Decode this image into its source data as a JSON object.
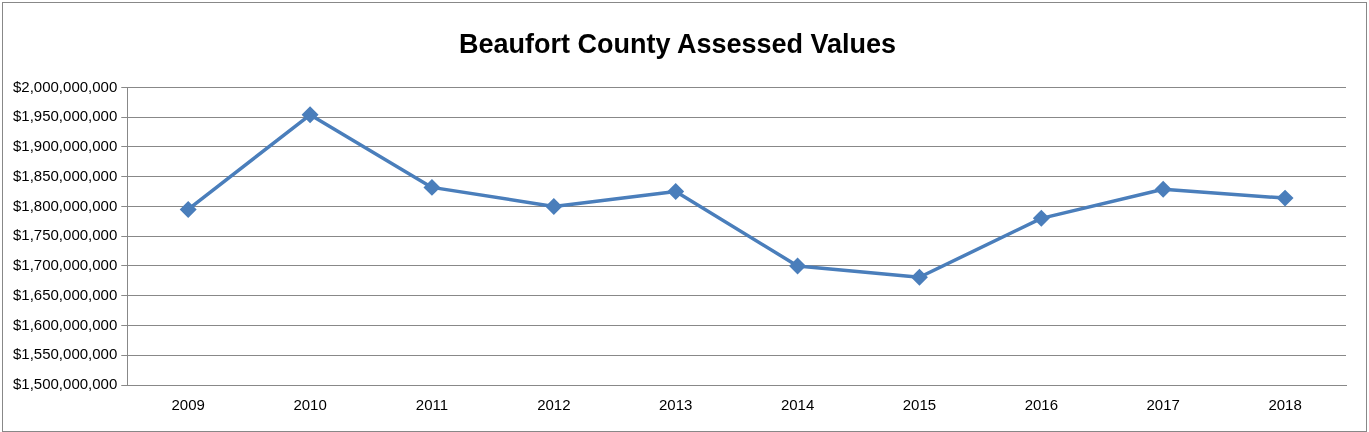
{
  "chart_data": {
    "type": "line",
    "title": "Beaufort County Assessed Values",
    "categories": [
      "2009",
      "2010",
      "2011",
      "2012",
      "2013",
      "2014",
      "2015",
      "2016",
      "2017",
      "2018"
    ],
    "series": [
      {
        "color": "#4a7ebb",
        "values": [
          1795000000,
          1954000000,
          1832000000,
          1800000000,
          1825000000,
          1700000000,
          1681000000,
          1780000000,
          1829000000,
          1814000000
        ]
      }
    ],
    "ylim": [
      1500000000,
      2000000000
    ],
    "yticks": [
      {
        "value": 1500000000,
        "label": "$1,500,000,000"
      },
      {
        "value": 1550000000,
        "label": "$1,550,000,000"
      },
      {
        "value": 1600000000,
        "label": "$1,600,000,000"
      },
      {
        "value": 1650000000,
        "label": "$1,650,000,000"
      },
      {
        "value": 1700000000,
        "label": "$1,700,000,000"
      },
      {
        "value": 1750000000,
        "label": "$1,750,000,000"
      },
      {
        "value": 1800000000,
        "label": "$1,800,000,000"
      },
      {
        "value": 1850000000,
        "label": "$1,850,000,000"
      },
      {
        "value": 1900000000,
        "label": "$1,900,000,000"
      },
      {
        "value": 1950000000,
        "label": "$1,950,000,000"
      },
      {
        "value": 2000000000,
        "label": "$2,000,000,000"
      }
    ],
    "grid": "y",
    "legend": false,
    "marker": "diamond",
    "line_style": "solid"
  }
}
